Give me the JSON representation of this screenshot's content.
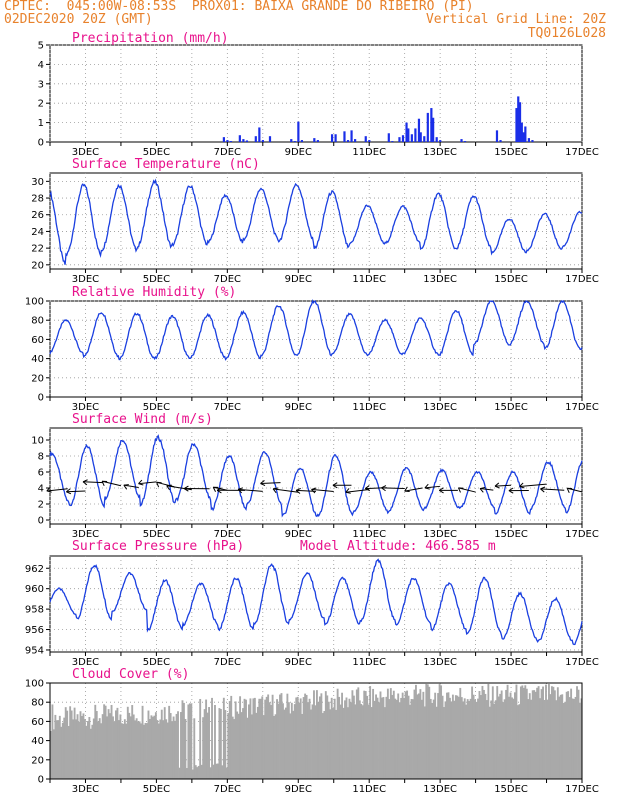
{
  "header": {
    "line1_left": "CPTEC:  045:00W-08:53S  PROX01: BAIXA GRANDE DO RIBEIRO (PI)",
    "line2_left": "02DEC2020 20Z (GMT)",
    "line2_right": "Vertical Grid Line: 20Z",
    "line3_right": "TQ0126L028"
  },
  "colors": {
    "header": "#e8822c",
    "title": "#e8128c",
    "line": "#1a3fe0",
    "bar": "#1a2ee8",
    "cloud": "#a9a9a9"
  },
  "chart_data": [
    {
      "id": "precip",
      "type": "bar",
      "title": "Precipitation (mm/h)",
      "x_ticks": [
        "3DEC",
        "5DEC",
        "7DEC",
        "9DEC",
        "11DEC",
        "13DEC",
        "15DEC",
        "17DEC"
      ],
      "ylim": [
        0,
        5
      ],
      "y_ticks": [
        0,
        1,
        2,
        3,
        4,
        5
      ],
      "x_unit": "days since 02DEC2020 20Z",
      "values": [
        [
          4.9,
          0.25
        ],
        [
          5.0,
          0.1
        ],
        [
          5.1,
          0.05
        ],
        [
          5.35,
          0.35
        ],
        [
          5.45,
          0.15
        ],
        [
          5.55,
          0.08
        ],
        [
          5.8,
          0.3
        ],
        [
          5.9,
          0.75
        ],
        [
          6.0,
          0.1
        ],
        [
          6.2,
          0.3
        ],
        [
          6.8,
          0.15
        ],
        [
          6.9,
          0.05
        ],
        [
          7.0,
          1.05
        ],
        [
          7.1,
          0.1
        ],
        [
          7.45,
          0.2
        ],
        [
          7.55,
          0.1
        ],
        [
          7.95,
          0.4
        ],
        [
          8.05,
          0.4
        ],
        [
          8.3,
          0.55
        ],
        [
          8.4,
          0.1
        ],
        [
          8.5,
          0.6
        ],
        [
          8.6,
          0.15
        ],
        [
          8.9,
          0.3
        ],
        [
          9.0,
          0.1
        ],
        [
          9.55,
          0.45
        ],
        [
          9.65,
          0.05
        ],
        [
          9.85,
          0.25
        ],
        [
          9.95,
          0.35
        ],
        [
          10.05,
          1.0
        ],
        [
          10.1,
          0.7
        ],
        [
          10.2,
          0.4
        ],
        [
          10.3,
          0.7
        ],
        [
          10.4,
          1.2
        ],
        [
          10.45,
          0.5
        ],
        [
          10.55,
          0.3
        ],
        [
          10.65,
          1.5
        ],
        [
          10.75,
          1.75
        ],
        [
          10.8,
          1.25
        ],
        [
          10.9,
          0.25
        ],
        [
          11.0,
          0.1
        ],
        [
          11.6,
          0.15
        ],
        [
          11.7,
          0.05
        ],
        [
          12.6,
          0.6
        ],
        [
          12.7,
          0.1
        ],
        [
          13.15,
          1.75
        ],
        [
          13.2,
          2.35
        ],
        [
          13.25,
          2.05
        ],
        [
          13.3,
          1.0
        ],
        [
          13.35,
          0.5
        ],
        [
          13.4,
          0.8
        ],
        [
          13.5,
          0.2
        ],
        [
          13.6,
          0.1
        ]
      ]
    },
    {
      "id": "temp",
      "type": "line",
      "title": "Surface Temperature (nC)",
      "x_ticks": [
        "3DEC",
        "5DEC",
        "7DEC",
        "9DEC",
        "11DEC",
        "13DEC",
        "15DEC",
        "17DEC"
      ],
      "ylim": [
        19.5,
        31
      ],
      "y_ticks": [
        20,
        22,
        24,
        26,
        28,
        30
      ],
      "amp_max": [
        28.9,
        29.5,
        29.5,
        29.9,
        29.4,
        28.3,
        29.1,
        29.6,
        28.7,
        27.1,
        27.0,
        28.5,
        28.2,
        25.5,
        26.1,
        26.3,
        27.8,
        28.4,
        30.2
      ],
      "amp_min": [
        20.0,
        21.2,
        21.8,
        22.1,
        22.4,
        22.7,
        23.0,
        22.9,
        22.0,
        22.5,
        22.6,
        21.9,
        22.0,
        21.4,
        21.8,
        22.2,
        21.5,
        22.6,
        22.9
      ]
    },
    {
      "id": "rh",
      "type": "line",
      "title": "Relative Humidity (%)",
      "x_ticks": [
        "3DEC",
        "5DEC",
        "7DEC",
        "9DEC",
        "11DEC",
        "13DEC",
        "15DEC",
        "17DEC"
      ],
      "ylim": [
        0,
        100
      ],
      "y_ticks": [
        0,
        20,
        40,
        60,
        80,
        100
      ],
      "amp_max": [
        80,
        88,
        87,
        84,
        85,
        88,
        95,
        100,
        86,
        80,
        82,
        90,
        100,
        100,
        100,
        95,
        90,
        100,
        100
      ],
      "amp_min": [
        45,
        42,
        40,
        40,
        41,
        40,
        43,
        44,
        44,
        44,
        45,
        43,
        55,
        55,
        50,
        50,
        48,
        45,
        40
      ]
    },
    {
      "id": "wind",
      "type": "line",
      "title": "Surface Wind (m/s)",
      "x_ticks": [
        "3DEC",
        "5DEC",
        "7DEC",
        "9DEC",
        "11DEC",
        "13DEC",
        "15DEC",
        "17DEC"
      ],
      "ylim": [
        -0.5,
        11.5
      ],
      "y_ticks": [
        0,
        2,
        4,
        6,
        8,
        10
      ],
      "amp_max": [
        8.3,
        9.2,
        10.0,
        10.3,
        9.5,
        8.0,
        8.5,
        6.5,
        8.0,
        6.0,
        6.5,
        6.2,
        6.0,
        6.0,
        7.2,
        7.5,
        6.8,
        6.5,
        6.8
      ],
      "amp_min": [
        2.2,
        1.8,
        2.8,
        2.0,
        2.5,
        1.3,
        2.0,
        0.5,
        0.5,
        1.0,
        1.2,
        1.5,
        1.5,
        0.8,
        1.5,
        1.0,
        1.2,
        0.8,
        1.5
      ]
    },
    {
      "id": "pressure",
      "type": "line",
      "title": "Surface Pressure (hPa)",
      "subtitle": "Model Altitude: 466.585 m",
      "x_ticks": [
        "3DEC",
        "5DEC",
        "7DEC",
        "9DEC",
        "11DEC",
        "13DEC",
        "15DEC",
        "17DEC"
      ],
      "ylim": [
        953.8,
        963.2
      ],
      "y_ticks": [
        954,
        956,
        958,
        960,
        962
      ],
      "amp_max": [
        960.0,
        962.3,
        961.5,
        960.8,
        960.5,
        961.0,
        962.3,
        961.5,
        961.0,
        962.7,
        961.0,
        960.5,
        961.0,
        959.5,
        959.0,
        959.0,
        959.0,
        959.0,
        958.5
      ],
      "amp_min": [
        957.5,
        957.0,
        957.8,
        956.0,
        956.5,
        956.0,
        956.5,
        957.0,
        956.5,
        956.8,
        956.5,
        956.0,
        955.5,
        955.0,
        954.8,
        954.5,
        954.5,
        954.5,
        954.0
      ]
    },
    {
      "id": "cloud",
      "type": "area",
      "title": "Cloud Cover (%)",
      "x_ticks": [
        "3DEC",
        "5DEC",
        "7DEC",
        "9DEC",
        "11DEC",
        "13DEC",
        "15DEC",
        "17DEC"
      ],
      "ylim": [
        0,
        100
      ],
      "y_ticks": [
        0,
        20,
        40,
        60,
        80,
        100
      ]
    }
  ]
}
